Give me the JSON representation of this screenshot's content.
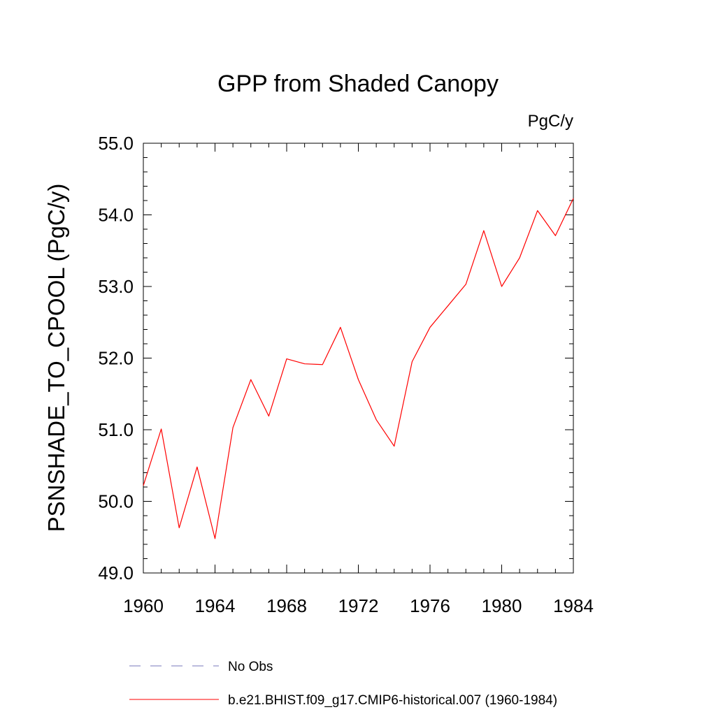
{
  "chart_data": {
    "type": "line",
    "title": "GPP from Shaded Canopy",
    "units": "PgC/y",
    "ylabel": "PSNSHADE_TO_CPOOL  (PgC/y)",
    "xlabel": "",
    "xlim": [
      1960,
      1984
    ],
    "ylim": [
      49.0,
      55.0
    ],
    "x_ticks": [
      1960,
      1964,
      1968,
      1972,
      1976,
      1980,
      1984
    ],
    "y_ticks": [
      {
        "value": 49.0,
        "label": "49.0"
      },
      {
        "value": 50.0,
        "label": "50.0"
      },
      {
        "value": 51.0,
        "label": "51.0"
      },
      {
        "value": 52.0,
        "label": "52.0"
      },
      {
        "value": 53.0,
        "label": "53.0"
      },
      {
        "value": 54.0,
        "label": "54.0"
      },
      {
        "value": 55.0,
        "label": "55.0"
      }
    ],
    "grid": false,
    "legend_position": "bottom",
    "series": [
      {
        "name": "b.e21.BHIST.f09_g17.CMIP6-historical.007 (1960-1984)",
        "color": "#ff0000",
        "dash": "solid",
        "x": [
          1960,
          1961,
          1962,
          1963,
          1964,
          1965,
          1966,
          1967,
          1968,
          1969,
          1970,
          1971,
          1972,
          1973,
          1974,
          1975,
          1976,
          1977,
          1978,
          1979,
          1980,
          1981,
          1982,
          1983,
          1984
        ],
        "y": [
          50.22,
          51.01,
          49.63,
          50.48,
          49.48,
          51.03,
          51.7,
          51.19,
          51.99,
          51.92,
          51.91,
          52.43,
          51.7,
          51.14,
          50.77,
          51.95,
          52.43,
          52.73,
          53.03,
          53.78,
          53.0,
          53.4,
          54.06,
          53.71,
          54.23
        ]
      }
    ],
    "legend": [
      {
        "label": "No Obs",
        "color": "#7777bb",
        "dash": "dashed"
      },
      {
        "label": "b.e21.BHIST.f09_g17.CMIP6-historical.007 (1960-1984)",
        "color": "#ff0000",
        "dash": "solid"
      }
    ]
  }
}
